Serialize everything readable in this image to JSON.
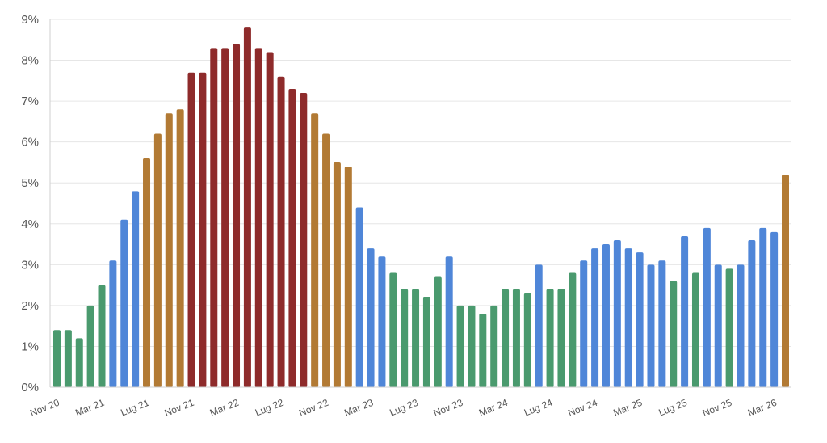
{
  "chart_data": {
    "type": "bar",
    "title": "",
    "xlabel": "",
    "ylabel": "",
    "ylim": [
      0,
      9
    ],
    "y_ticks": [
      "0%",
      "1%",
      "2%",
      "3%",
      "4%",
      "5%",
      "6%",
      "7%",
      "8%",
      "9%"
    ],
    "x_tick_labels": [
      "Nov 20",
      "Mar 21",
      "Lug 21",
      "Nov 21",
      "Mar 22",
      "Lug 22",
      "Nov 22",
      "Mar 23",
      "Lug 23",
      "Nov 23",
      "Mar 24",
      "Lug 24",
      "Nov 24",
      "Mar 25",
      "Lug 25",
      "Nov 25",
      "Mar 26"
    ],
    "grid": true,
    "legend": false,
    "colors": {
      "green": "#4a9a6e",
      "blue": "#4f86d8",
      "orange": "#b27a34",
      "red": "#8e2b2b"
    },
    "values": [
      1.4,
      1.4,
      1.2,
      2.0,
      2.5,
      3.1,
      4.1,
      4.8,
      5.6,
      6.2,
      6.7,
      6.8,
      7.7,
      7.7,
      8.3,
      8.3,
      8.4,
      8.8,
      8.3,
      8.2,
      7.6,
      7.3,
      7.2,
      6.7,
      6.2,
      5.5,
      5.4,
      4.4,
      3.4,
      3.2,
      2.8,
      2.4,
      2.4,
      2.2,
      2.7,
      3.2,
      2.0,
      2.0,
      1.8,
      2.0,
      2.4,
      2.4,
      2.3,
      3.0,
      2.4,
      2.4,
      2.8,
      3.1,
      3.4,
      3.5,
      3.6,
      3.4,
      3.3,
      3.0,
      3.1,
      2.6,
      3.7,
      2.8,
      3.9,
      3.0,
      2.9,
      3.0,
      3.6,
      3.9,
      3.8,
      5.2
    ],
    "bar_colors": [
      "green",
      "green",
      "green",
      "green",
      "green",
      "blue",
      "blue",
      "blue",
      "orange",
      "orange",
      "orange",
      "orange",
      "red",
      "red",
      "red",
      "red",
      "red",
      "red",
      "red",
      "red",
      "red",
      "red",
      "red",
      "orange",
      "orange",
      "orange",
      "orange",
      "blue",
      "blue",
      "blue",
      "green",
      "green",
      "green",
      "green",
      "green",
      "blue",
      "green",
      "green",
      "green",
      "green",
      "green",
      "green",
      "green",
      "blue",
      "green",
      "green",
      "green",
      "blue",
      "blue",
      "blue",
      "blue",
      "blue",
      "blue",
      "blue",
      "blue",
      "green",
      "blue",
      "green",
      "blue",
      "blue",
      "green",
      "blue",
      "blue",
      "blue",
      "blue",
      "orange"
    ]
  }
}
